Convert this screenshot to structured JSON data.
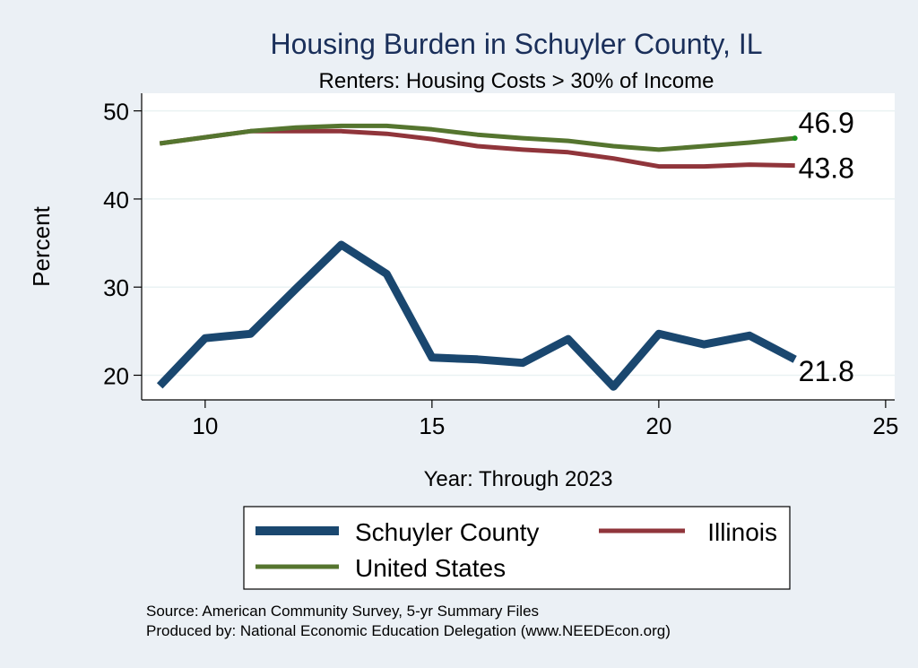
{
  "chart_data": {
    "type": "line",
    "title": "Housing Burden in Schuyler County, IL",
    "subtitle": "Renters: Housing Costs > 30% of Income",
    "xlabel": "Year: Through 2023",
    "ylabel": "Percent",
    "xlim": [
      8.6,
      25.2
    ],
    "ylim": [
      17.2,
      52
    ],
    "x_ticks": [
      10,
      15,
      20,
      25
    ],
    "y_ticks": [
      20,
      30,
      40,
      50
    ],
    "grid": true,
    "legend_position": "bottom",
    "x": [
      9,
      10,
      11,
      12,
      13,
      14,
      15,
      16,
      17,
      18,
      19,
      20,
      21,
      22,
      23
    ],
    "series": [
      {
        "name": "Schuyler County",
        "color": "#1a476f",
        "values": [
          18.8,
          24.2,
          24.7,
          29.8,
          34.8,
          31.5,
          22.0,
          21.8,
          21.4,
          24.1,
          18.7,
          24.7,
          23.5,
          24.5,
          21.8
        ],
        "end_label": "21.8"
      },
      {
        "name": "Illinois",
        "color": "#90353b",
        "values": [
          46.3,
          47.0,
          47.7,
          47.7,
          47.7,
          47.4,
          46.8,
          46.0,
          45.6,
          45.3,
          44.6,
          43.7,
          43.7,
          43.9,
          43.8
        ],
        "end_label": "43.8"
      },
      {
        "name": "United States",
        "color": "#55752f",
        "values": [
          46.3,
          47.0,
          47.7,
          48.1,
          48.3,
          48.3,
          47.9,
          47.3,
          46.9,
          46.6,
          46.0,
          45.6,
          46.0,
          46.4,
          46.9
        ],
        "end_label": "46.9"
      }
    ]
  },
  "legend": {
    "items": [
      "Schuyler County",
      "Illinois",
      "United States"
    ]
  },
  "source": {
    "line1": "Source: American Community Survey, 5-yr Summary Files",
    "line2": "Produced by: National Economic Education Delegation (www.NEEDEcon.org)"
  }
}
